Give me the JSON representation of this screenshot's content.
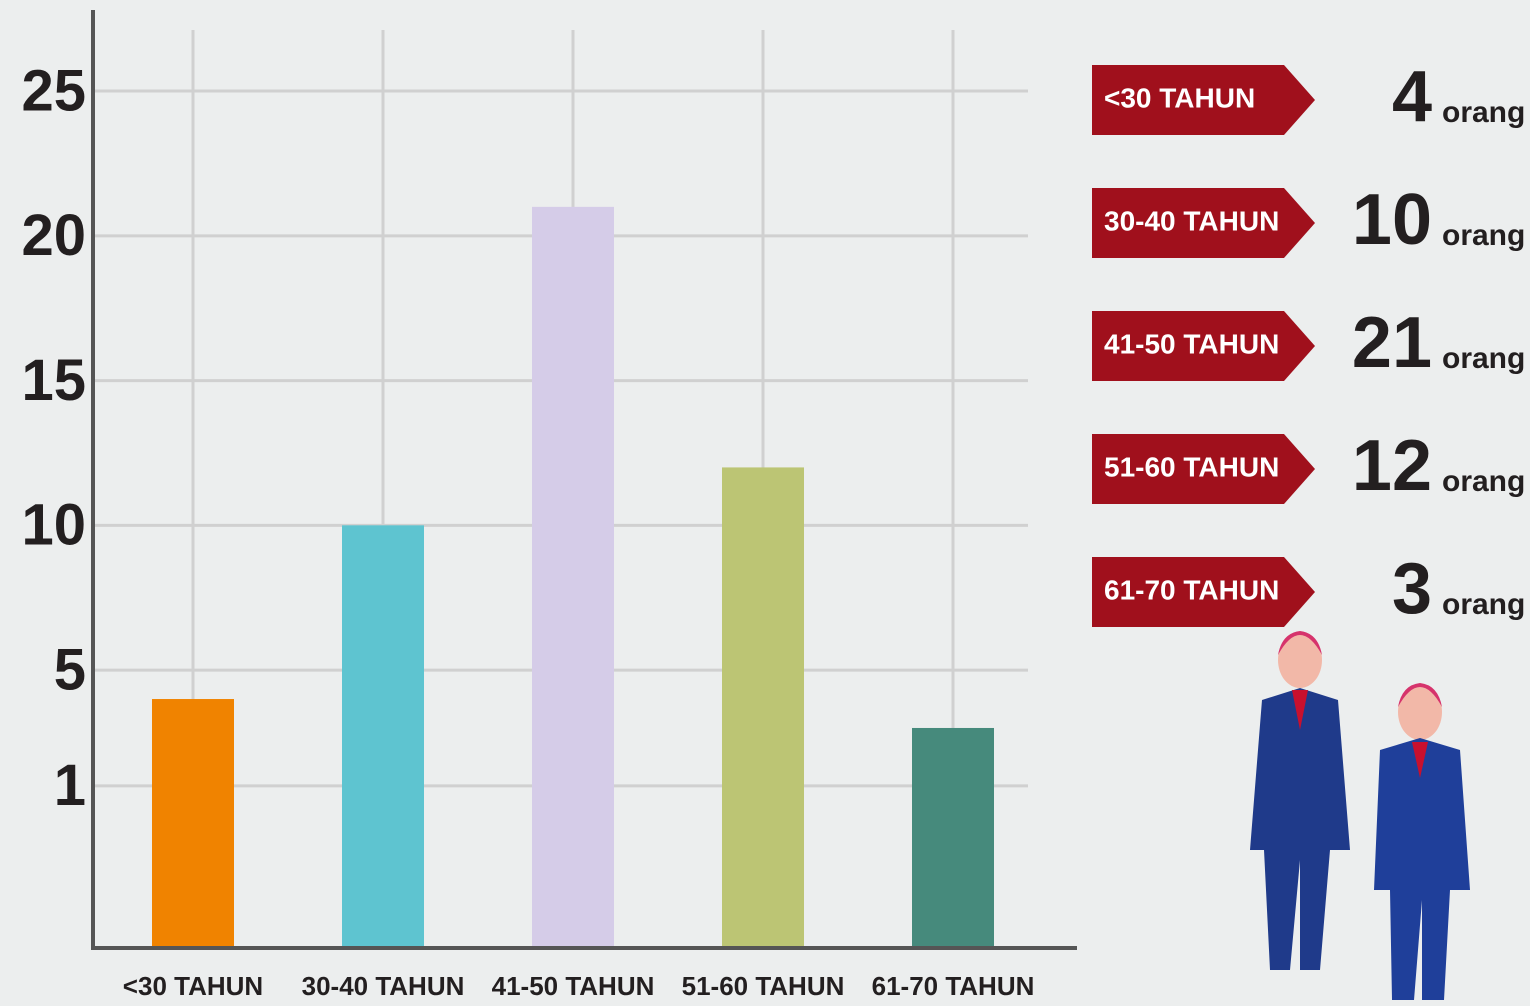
{
  "chart_data": {
    "type": "bar",
    "categories": [
      "<30 TAHUN",
      "30-40 TAHUN",
      "41-50 TAHUN",
      "51-60 TAHUN",
      "61-70 TAHUN"
    ],
    "values": [
      4,
      10,
      21,
      12,
      3
    ],
    "unit_label": "orang",
    "colors": [
      "#f08300",
      "#5ec4d0",
      "#d5cce8",
      "#bcc574",
      "#468a7c"
    ],
    "ylim": [
      -4.6,
      27.8
    ],
    "yticks": [
      1,
      5,
      10,
      15,
      20,
      25
    ],
    "grid": true
  }
}
